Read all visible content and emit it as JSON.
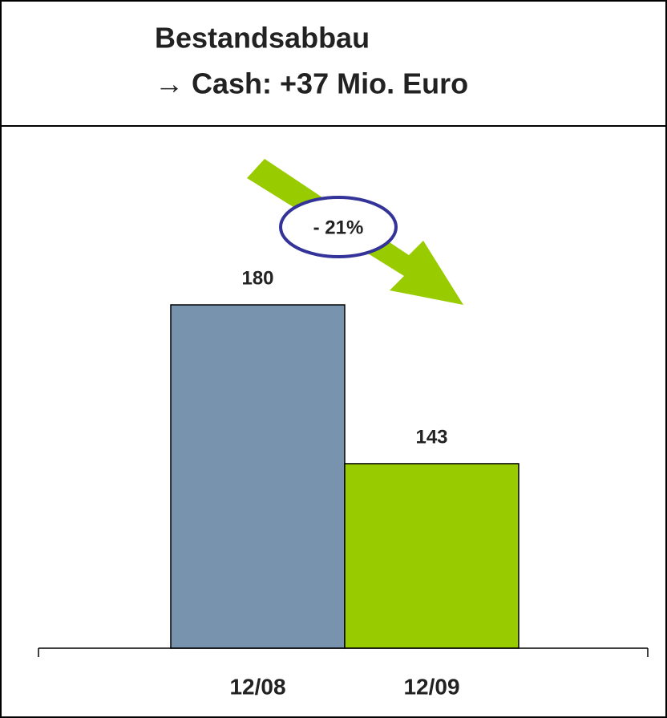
{
  "chart_data": {
    "type": "bar",
    "title": "Bestandsabbau",
    "subtitle": "→ Cash: +37 Mio. Euro",
    "annotation": "- 21%",
    "categories": [
      "12/08",
      "12/09"
    ],
    "values": [
      180,
      143
    ],
    "colors": [
      "#7893ae",
      "#99cc00"
    ],
    "ylim": [
      100,
      200
    ]
  }
}
